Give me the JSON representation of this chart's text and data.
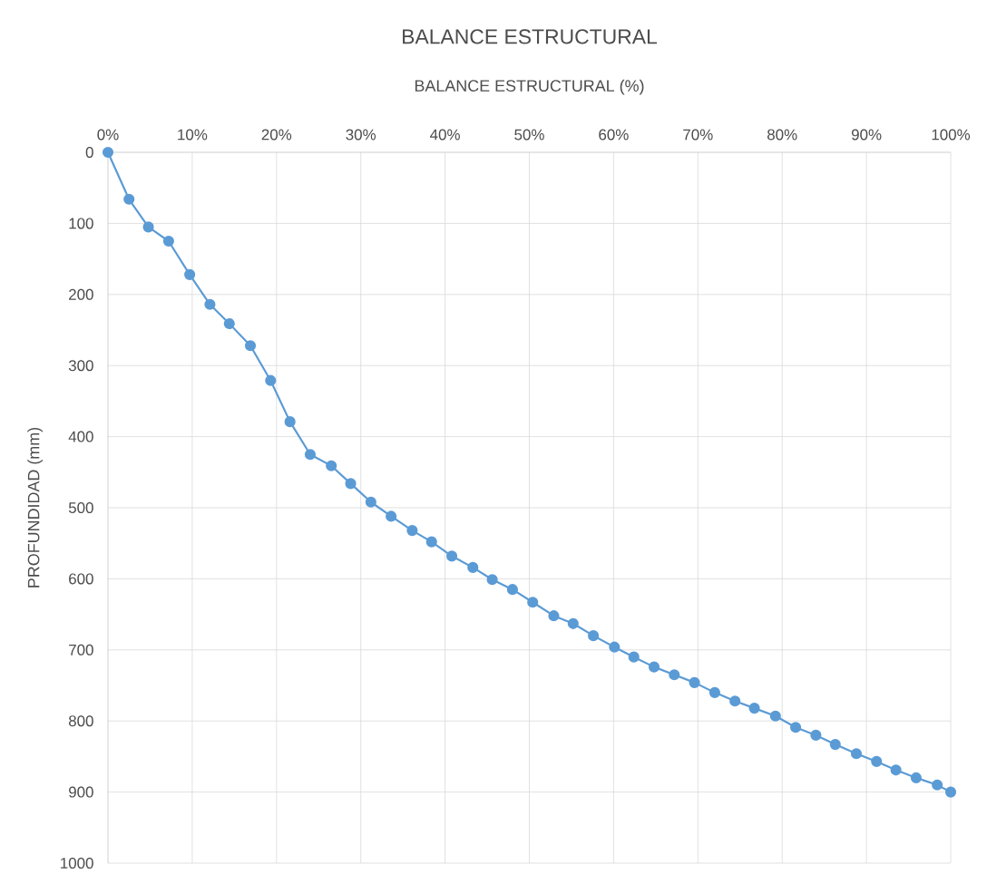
{
  "chart_data": {
    "type": "line",
    "title": "BALANCE ESTRUCTURAL",
    "xlabel": "BALANCE ESTRUCTURAL (%)",
    "ylabel": "PROFUNDIDAD (mm)",
    "xlim": [
      0,
      100
    ],
    "xticks": [
      {
        "value": 0,
        "label": "0%"
      },
      {
        "value": 10,
        "label": "10%"
      },
      {
        "value": 20,
        "label": "20%"
      },
      {
        "value": 30,
        "label": "30%"
      },
      {
        "value": 40,
        "label": "40%"
      },
      {
        "value": 50,
        "label": "50%"
      },
      {
        "value": 60,
        "label": "60%"
      },
      {
        "value": 70,
        "label": "70%"
      },
      {
        "value": 80,
        "label": "80%"
      },
      {
        "value": 90,
        "label": "90%"
      },
      {
        "value": 100,
        "label": "100%"
      }
    ],
    "ylim": [
      1000,
      0
    ],
    "yticks": [
      0,
      100,
      200,
      300,
      400,
      500,
      600,
      700,
      800,
      900,
      1000
    ],
    "grid": true,
    "marker": "circle",
    "line_style": "solid",
    "series": [
      {
        "color": "#5b9bd5",
        "x": [
          0,
          2.5,
          4.8,
          7.2,
          9.7,
          12.1,
          14.4,
          16.9,
          19.3,
          21.6,
          24.0,
          26.5,
          28.8,
          31.2,
          33.6,
          36.1,
          38.4,
          40.8,
          43.3,
          45.6,
          48.0,
          50.4,
          52.9,
          55.2,
          57.6,
          60.1,
          62.4,
          64.8,
          67.2,
          69.6,
          72.0,
          74.4,
          76.7,
          79.2,
          81.6,
          84.0,
          86.3,
          88.8,
          91.2,
          93.5,
          95.9,
          98.4,
          100
        ],
        "values": [
          0,
          66,
          105,
          125,
          172,
          214,
          241,
          272,
          321,
          379,
          425,
          441,
          466,
          492,
          512,
          532,
          548,
          568,
          584,
          601,
          615,
          633,
          652,
          663,
          680,
          696,
          710,
          724,
          735,
          746,
          760,
          772,
          782,
          793,
          809,
          820,
          833,
          846,
          857,
          869,
          880,
          890,
          900
        ]
      }
    ]
  }
}
